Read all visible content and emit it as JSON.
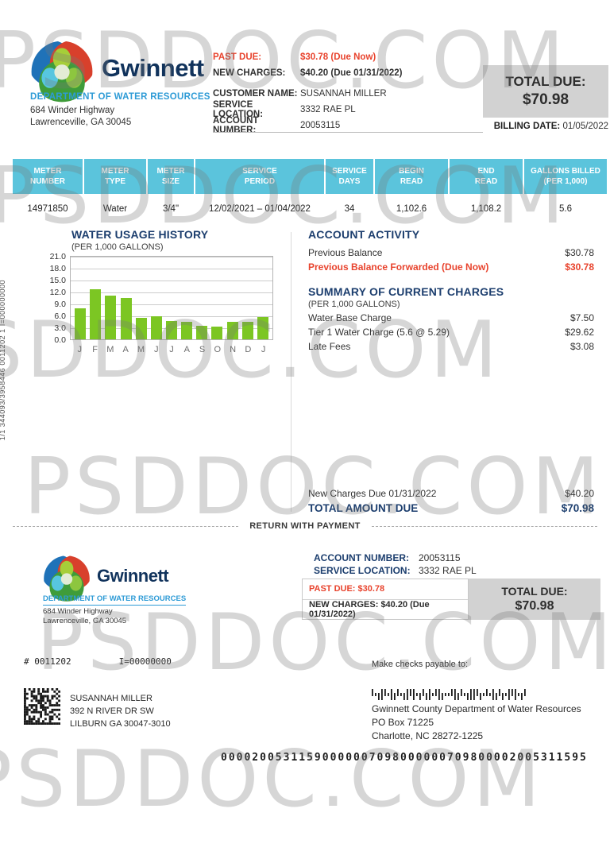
{
  "watermark": {
    "text": "PSDDOC.COM"
  },
  "header": {
    "brand": "Gwinnett",
    "department": "DEPARTMENT OF WATER RESOURCES",
    "address_line1": "684 Winder Highway",
    "address_line2": "Lawrenceville, GA 30045",
    "past_due_label": "PAST DUE:",
    "past_due_value": "$30.78 (Due Now)",
    "new_charges_label": "NEW CHARGES:",
    "new_charges_value": "$40.20 (Due 01/31/2022)",
    "customer_name_label": "CUSTOMER NAME:",
    "customer_name_value": "SUSANNAH MILLER",
    "service_location_label": "SERVICE LOCATION:",
    "service_location_value": "3332 RAE PL",
    "account_number_label": "ACCOUNT NUMBER:",
    "account_number_value": "20053115",
    "total_due_label": "TOTAL DUE:",
    "total_due_value": "$70.98",
    "billing_date_label": "BILLING DATE:",
    "billing_date_value": "01/05/2022"
  },
  "meter_table": {
    "headers": [
      "METER\nNUMBER",
      "METER\nTYPE",
      "METER\nSIZE",
      "SERVICE\nPERIOD",
      "SERVICE\nDAYS",
      "BEGIN\nREAD",
      "END\nREAD",
      "GALLONS BILLED\n(PER 1,000)"
    ],
    "row": [
      "14971850",
      "Water",
      "3/4\"",
      "12/02/2021 – 01/04/2022",
      "34",
      "1,102.6",
      "1,108.2",
      "5.6"
    ]
  },
  "chart_data": {
    "type": "bar",
    "title": "WATER USAGE HISTORY",
    "subtitle": "(PER 1,000 GALLONS)",
    "categories": [
      "J",
      "F",
      "M",
      "A",
      "M",
      "J",
      "J",
      "A",
      "S",
      "O",
      "N",
      "D",
      "J"
    ],
    "values": [
      7.9,
      12.7,
      11.2,
      10.6,
      5.5,
      5.9,
      4.7,
      4.5,
      3.5,
      3.3,
      4.5,
      4.4,
      5.6
    ],
    "ylabel": "",
    "xlabel": "",
    "ylim": [
      0,
      21
    ],
    "yticks": [
      "21.0",
      "18.0",
      "15.0",
      "12.0",
      "9.0",
      "6.0",
      "3.0",
      "0.0"
    ],
    "grid": true,
    "bar_color": "#7cc623",
    "legend": "none"
  },
  "account_activity": {
    "title": "ACCOUNT ACTIVITY",
    "rows": [
      {
        "label": "Previous Balance",
        "value": "$30.78"
      },
      {
        "label": "Previous Balance Forwarded (Due Now)",
        "value": "$30.78"
      }
    ]
  },
  "current_charges": {
    "title": "SUMMARY OF CURRENT CHARGES",
    "subtitle": "(PER 1,000 GALLONS)",
    "rows": [
      {
        "label": "Water Base Charge",
        "value": "$7.50"
      },
      {
        "label": "Tier 1 Water Charge (5.6 @ 5.29)",
        "value": "$29.62"
      },
      {
        "label": "Late Fees",
        "value": "$3.08"
      }
    ]
  },
  "totals": {
    "new_charges_label": "New Charges Due 01/31/2022",
    "new_charges_value": "$40.20",
    "total_label": "TOTAL AMOUNT DUE",
    "total_value": "$70.98"
  },
  "return_stub": {
    "divider_label": "RETURN WITH PAYMENT",
    "brand": "Gwinnett",
    "department": "DEPARTMENT OF WATER RESOURCES",
    "address_line1": "684 Winder Highway",
    "address_line2": "Lawrenceville, GA 30045",
    "account_number_label": "ACCOUNT NUMBER:",
    "account_number_value": "20053115",
    "service_location_label": "SERVICE LOCATION:",
    "service_location_value": "3332 RAE PL",
    "past_due": "PAST DUE: $30.78",
    "new_charges": "NEW CHARGES: $40.20 (Due 01/31/2022)",
    "total_due_label": "TOTAL DUE:",
    "total_due_value": "$70.98",
    "print_code1": "#   0011202",
    "print_code2": "I=00000000"
  },
  "mailing": {
    "payable_note": "Make checks payable to:",
    "customer_name": "SUSANNAH MILLER",
    "customer_address1": "392 N RIVER DR SW",
    "customer_address2": "LILBURN GA 30047-3010",
    "payee_name": "Gwinnett County Department of Water Resources",
    "payee_address1": "PO Box 71225",
    "payee_address2": "Charlotte, NC 28272-1225",
    "ocr_line": "00002005311590000007098000000709800002005311595"
  },
  "side_text": "1/1 344093/3958446 0011202 1 I=000000000"
}
